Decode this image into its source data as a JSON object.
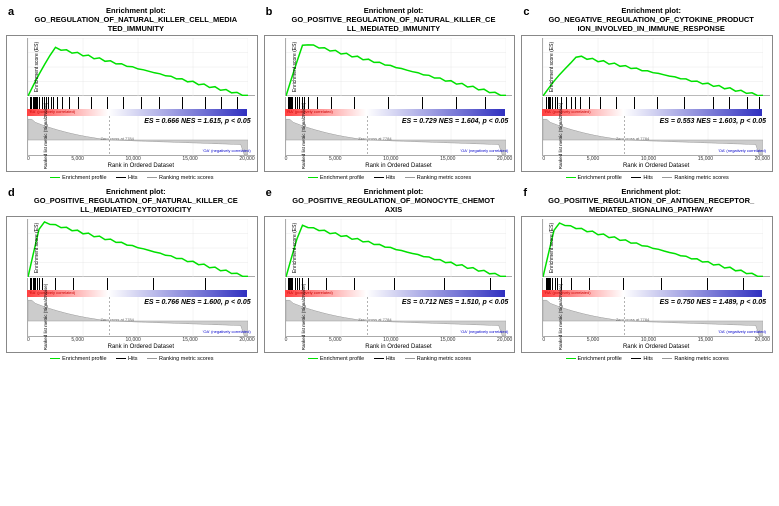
{
  "panels": [
    {
      "letter": "a",
      "title_l1": "Enrichment plot:",
      "title_l2": "GO_REGULATION_OF_NATURAL_KILLER_CELL_MEDIA",
      "title_l3": "TED_IMMUNITY",
      "stats": "ES = 0.666 NES = 1.615, p < 0.05",
      "es_max": 0.666,
      "es_peak_x": 0.12,
      "hits": [
        0.01,
        0.015,
        0.02,
        0.025,
        0.03,
        0.035,
        0.04,
        0.05,
        0.06,
        0.07,
        0.08,
        0.09,
        0.1,
        0.11,
        0.13,
        0.15,
        0.18,
        0.22,
        0.28,
        0.35,
        0.42,
        0.5,
        0.58,
        0.68,
        0.78,
        0.85,
        0.92
      ]
    },
    {
      "letter": "b",
      "title_l1": "Enrichment plot:",
      "title_l2": "GO_POSITIVE_REGULATION_OF_NATURAL_KILLER_CE",
      "title_l3": "LL_MEDIATED_IMMUNITY",
      "stats": "ES = 0.729 NES = 1.604, p < 0.05",
      "es_max": 0.729,
      "es_peak_x": 0.08,
      "hits": [
        0.01,
        0.015,
        0.02,
        0.025,
        0.03,
        0.04,
        0.05,
        0.06,
        0.07,
        0.08,
        0.1,
        0.14,
        0.2,
        0.3,
        0.45,
        0.6,
        0.75,
        0.88
      ]
    },
    {
      "letter": "c",
      "title_l1": "Enrichment plot:",
      "title_l2": "GO_NEGATIVE_REGULATION_OF_CYTOKINE_PRODUCT",
      "title_l3": "ION_INVOLVED_IN_IMMUNE_RESPONSE",
      "stats": "ES = 0.553 NES = 1.603, p < 0.05",
      "es_max": 0.553,
      "es_peak_x": 0.15,
      "hits": [
        0.01,
        0.02,
        0.025,
        0.03,
        0.04,
        0.05,
        0.06,
        0.08,
        0.1,
        0.12,
        0.14,
        0.16,
        0.2,
        0.25,
        0.32,
        0.4,
        0.5,
        0.62,
        0.75,
        0.82,
        0.9,
        0.95
      ]
    },
    {
      "letter": "d",
      "title_l1": "Enrichment plot:",
      "title_l2": "GO_POSITIVE_REGULATION_OF_NATURAL_KILLER_CE",
      "title_l3": "LL_MEDIATED_CYTOTOXICITY",
      "stats": "ES = 0.766 NES = 1.600, p < 0.05",
      "es_max": 0.766,
      "es_peak_x": 0.06,
      "hits": [
        0.01,
        0.015,
        0.02,
        0.025,
        0.03,
        0.04,
        0.05,
        0.06,
        0.12,
        0.2,
        0.35,
        0.55,
        0.78
      ]
    },
    {
      "letter": "e",
      "title_l1": "Enrichment plot:",
      "title_l2": "GO_POSITIVE_REGULATION_OF_MONOCYTE_CHEMOT",
      "title_l3": "AXIS",
      "stats": "ES = 0.712 NES = 1.510, p < 0.05",
      "es_max": 0.712,
      "es_peak_x": 0.07,
      "hits": [
        0.01,
        0.015,
        0.02,
        0.025,
        0.03,
        0.04,
        0.05,
        0.06,
        0.07,
        0.1,
        0.18,
        0.3,
        0.48,
        0.7,
        0.9
      ]
    },
    {
      "letter": "f",
      "title_l1": "Enrichment plot:",
      "title_l2": "GO_POSITIVE_REGULATION_OF_ANTIGEN_RECEPTOR_",
      "title_l3": "MEDIATED_SIGNALING_PATHWAY",
      "stats": "ES = 0.750 NES = 1.489, p < 0.05",
      "es_max": 0.75,
      "es_peak_x": 0.06,
      "hits": [
        0.01,
        0.015,
        0.02,
        0.025,
        0.03,
        0.04,
        0.05,
        0.06,
        0.08,
        0.12,
        0.2,
        0.35,
        0.52,
        0.72,
        0.88
      ]
    }
  ],
  "chart_common": {
    "es_ylabel": "Enrichment score (ES)",
    "metric_ylabel": "Ranked list metric (Signal2Noise)",
    "xlabel": "Rank in Ordered Dataset",
    "x_ticks": [
      "0",
      "5,000",
      "10,000",
      "15,000",
      "20,000"
    ],
    "pos_label": "'RA' (positively correlated)",
    "neg_label": "'OA' (negatively correlated)",
    "zero_cross_text": "Zero cross at 7784",
    "zero_cross_x": 0.37,
    "legend": {
      "profile": "Enrichment profile",
      "hits": "Hits",
      "metric": "Ranking metric scores"
    },
    "colors": {
      "es_line": "#00e000",
      "grid": "#e8e8e8",
      "hit_tick": "#000000",
      "gradient_red": "#ff4040",
      "gradient_white": "#ffffff",
      "gradient_blue": "#3030c0",
      "metric_fill": "#cccccc",
      "border": "#888888"
    },
    "metric_y_range": [
      -1.0,
      1.5
    ],
    "metric_y_ticks": [
      "1.0",
      "0.5",
      "0.0",
      "-0.5",
      "-1.0"
    ]
  }
}
